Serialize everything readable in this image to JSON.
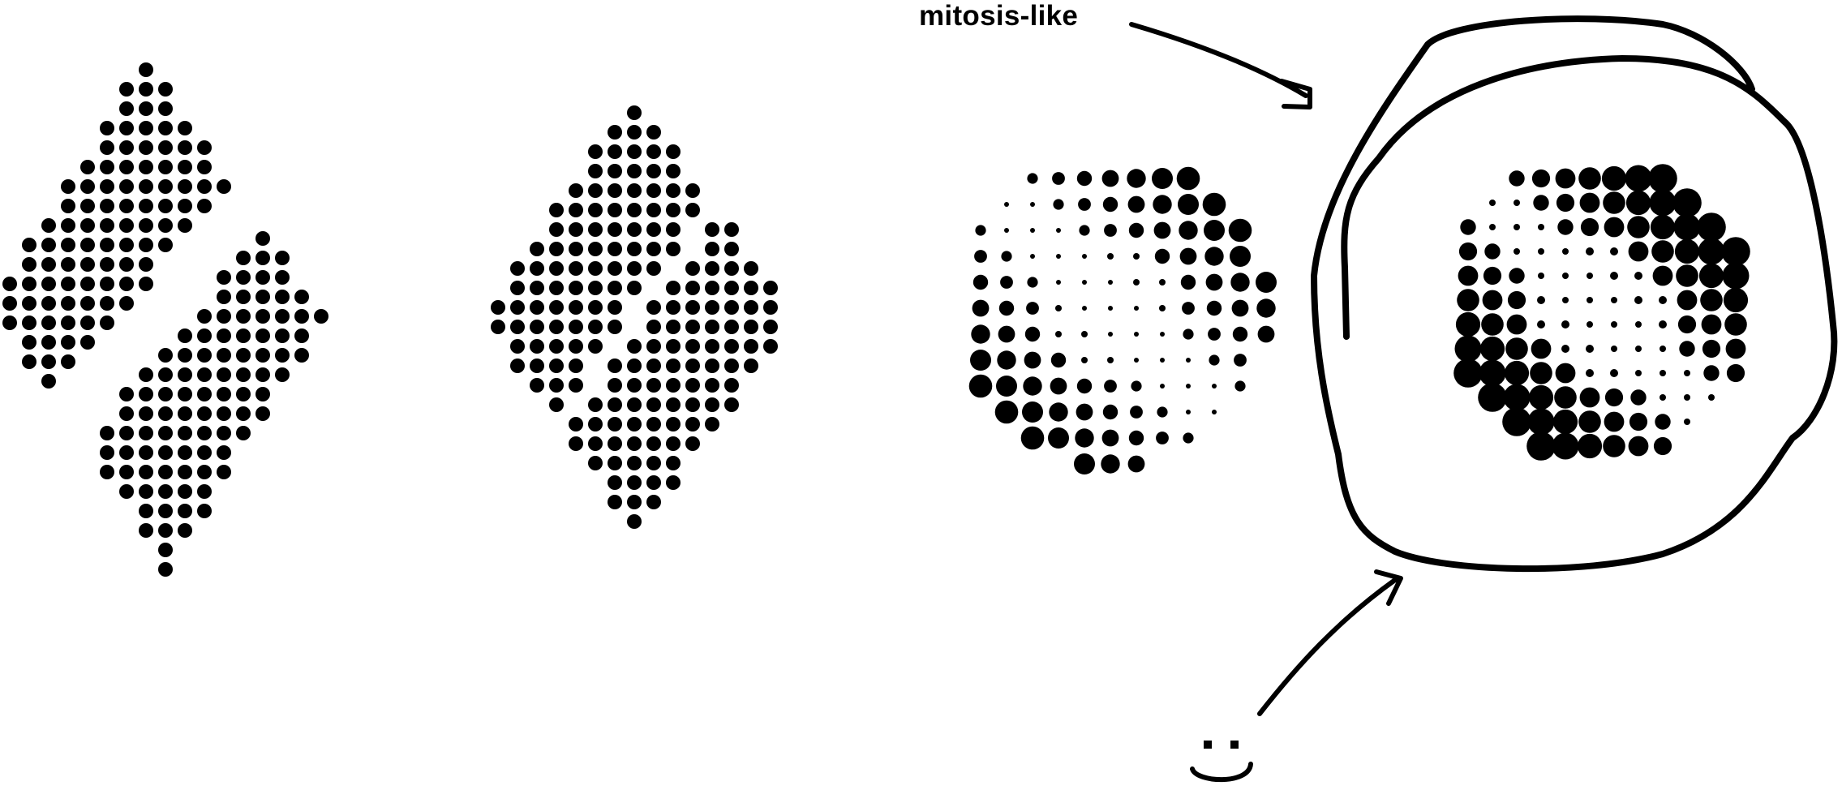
{
  "annotation": {
    "text": "mitosis-like"
  },
  "colors": {
    "ink": "#000000",
    "background": "#ffffff"
  },
  "figures": [
    {
      "name": "split-diamond",
      "style": "uniform-dots"
    },
    {
      "name": "joined-diamond",
      "style": "uniform-dots"
    },
    {
      "name": "halftone-yin-yang",
      "style": "varying-dots"
    },
    {
      "name": "merged-halftone-yin-yang",
      "style": "merged-blobs"
    }
  ],
  "doodles": [
    "arrow-to-circle",
    "circle-scribble",
    "arrow-from-smiley",
    "smiley-face"
  ]
}
